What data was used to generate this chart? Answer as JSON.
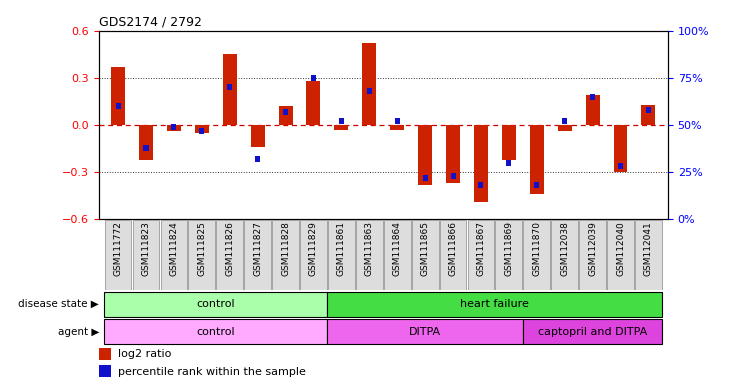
{
  "title": "GDS2174 / 2792",
  "samples": [
    "GSM111772",
    "GSM111823",
    "GSM111824",
    "GSM111825",
    "GSM111826",
    "GSM111827",
    "GSM111828",
    "GSM111829",
    "GSM111861",
    "GSM111863",
    "GSM111864",
    "GSM111865",
    "GSM111866",
    "GSM111867",
    "GSM111869",
    "GSM111870",
    "GSM112038",
    "GSM112039",
    "GSM112040",
    "GSM112041"
  ],
  "log2_ratio": [
    0.37,
    -0.22,
    -0.04,
    -0.05,
    0.45,
    -0.14,
    0.12,
    0.28,
    -0.03,
    0.52,
    -0.03,
    -0.38,
    -0.37,
    -0.49,
    -0.22,
    -0.44,
    -0.04,
    0.19,
    -0.3,
    0.13
  ],
  "percentile_rank": [
    60,
    38,
    49,
    47,
    70,
    32,
    57,
    75,
    52,
    68,
    52,
    22,
    23,
    18,
    30,
    18,
    52,
    65,
    28,
    58
  ],
  "disease_state_groups": [
    {
      "label": "control",
      "start": 0,
      "end": 8,
      "color": "#AAFFAA"
    },
    {
      "label": "heart failure",
      "start": 8,
      "end": 20,
      "color": "#44DD44"
    }
  ],
  "agent_groups": [
    {
      "label": "control",
      "start": 0,
      "end": 8,
      "color": "#FFAAFF"
    },
    {
      "label": "DITPA",
      "start": 8,
      "end": 15,
      "color": "#EE66EE"
    },
    {
      "label": "captopril and DITPA",
      "start": 15,
      "end": 20,
      "color": "#DD44DD"
    }
  ],
  "ylim": [
    -0.6,
    0.6
  ],
  "yticks_left": [
    -0.6,
    -0.3,
    0.0,
    0.3,
    0.6
  ],
  "right_yticks_pct": [
    0,
    25,
    50,
    75,
    100
  ],
  "bar_color_red": "#CC2200",
  "bar_color_blue": "#1111CC",
  "hline_color": "#CC0000",
  "dotted_color": "#333333",
  "bg_color": "#FFFFFF",
  "tick_bg_color": "#DDDDDD"
}
